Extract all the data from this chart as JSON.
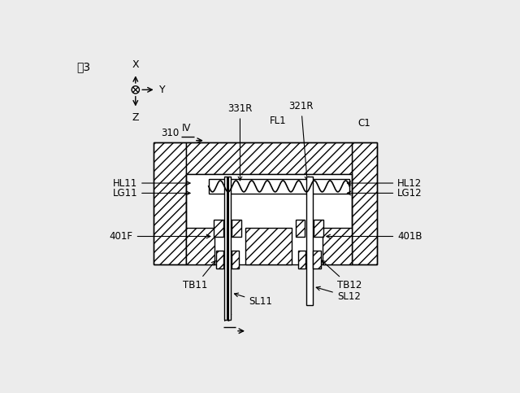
{
  "title": "図3",
  "bg": "#ececec",
  "fig_w": 6.4,
  "fig_h": 4.83,
  "dpi": 100,
  "labels": {
    "310": "310",
    "331R": "331R",
    "321R": "321R",
    "FL1": "FL1",
    "C1": "C1",
    "HL11": "HL11",
    "LG11": "LG11",
    "401F": "401F",
    "TB11": "TB11",
    "SL11": "SL11",
    "HL12": "HL12",
    "LG12": "LG12",
    "401B": "401B",
    "TB12": "TB12",
    "SL12": "SL12"
  }
}
